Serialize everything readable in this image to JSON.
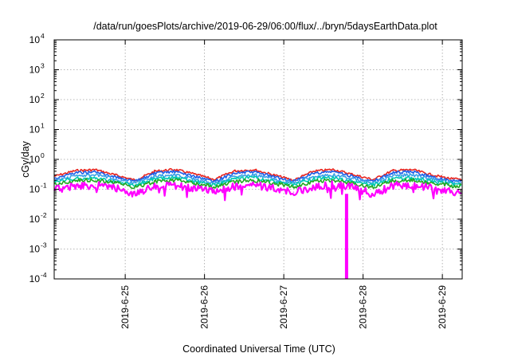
{
  "chart_data": {
    "type": "line",
    "title": "/data/run/goesPlots/archive/2019-06-29/06:00/flux/../bryn/5daysEarthData.plot",
    "xlabel": "Coordinated Universal Time (UTC)",
    "ylabel": "cGy/day",
    "yscale": "log",
    "ylim": [
      0.0001,
      10000
    ],
    "xlim": [
      "2019-06-24T02:30",
      "2019-06-29T06:00"
    ],
    "grid": true,
    "y_ticks": [
      {
        "base": "10",
        "exp": "-4",
        "value": 0.0001
      },
      {
        "base": "10",
        "exp": "-3",
        "value": 0.001
      },
      {
        "base": "10",
        "exp": "-2",
        "value": 0.01
      },
      {
        "base": "10",
        "exp": "-1",
        "value": 0.1
      },
      {
        "base": "10",
        "exp": "0",
        "value": 1
      },
      {
        "base": "10",
        "exp": "1",
        "value": 10
      },
      {
        "base": "10",
        "exp": "2",
        "value": 100
      },
      {
        "base": "10",
        "exp": "3",
        "value": 1000
      },
      {
        "base": "10",
        "exp": "4",
        "value": 10000
      }
    ],
    "x_ticks": [
      {
        "label": "2019-6-25",
        "value": "2019-06-25T00:00"
      },
      {
        "label": "2019-6-26",
        "value": "2019-06-26T00:00"
      },
      {
        "label": "2019-6-27",
        "value": "2019-06-27T00:00"
      },
      {
        "label": "2019-6-28",
        "value": "2019-06-28T00:00"
      },
      {
        "label": "2019-6-29",
        "value": "2019-06-29T00:00"
      }
    ],
    "x": [
      "2019-06-24T03:00",
      "2019-06-24T09:00",
      "2019-06-24T15:00",
      "2019-06-24T21:00",
      "2019-06-25T03:00",
      "2019-06-25T09:00",
      "2019-06-25T15:00",
      "2019-06-25T21:00",
      "2019-06-26T03:00",
      "2019-06-26T09:00",
      "2019-06-26T15:00",
      "2019-06-26T21:00",
      "2019-06-27T03:00",
      "2019-06-27T09:00",
      "2019-06-27T15:00",
      "2019-06-27T21:00",
      "2019-06-28T03:00",
      "2019-06-28T09:00",
      "2019-06-28T15:00",
      "2019-06-28T21:00",
      "2019-06-29T03:00"
    ],
    "series": [
      {
        "color": "#e8251f",
        "values": [
          0.28,
          0.42,
          0.45,
          0.3,
          0.2,
          0.4,
          0.46,
          0.32,
          0.21,
          0.41,
          0.45,
          0.3,
          0.2,
          0.4,
          0.46,
          0.31,
          0.21,
          0.42,
          0.45,
          0.3,
          0.22
        ]
      },
      {
        "color": "#1f5fe8",
        "values": [
          0.24,
          0.36,
          0.38,
          0.26,
          0.18,
          0.34,
          0.39,
          0.27,
          0.18,
          0.35,
          0.38,
          0.26,
          0.18,
          0.34,
          0.39,
          0.27,
          0.18,
          0.36,
          0.38,
          0.26,
          0.19
        ]
      },
      {
        "color": "#3aa0e8",
        "values": [
          0.2,
          0.28,
          0.3,
          0.22,
          0.16,
          0.27,
          0.3,
          0.22,
          0.16,
          0.27,
          0.3,
          0.22,
          0.16,
          0.27,
          0.3,
          0.22,
          0.16,
          0.28,
          0.3,
          0.22,
          0.17
        ]
      },
      {
        "color": "#00c8b4",
        "values": [
          0.17,
          0.23,
          0.24,
          0.18,
          0.14,
          0.22,
          0.24,
          0.18,
          0.14,
          0.22,
          0.24,
          0.18,
          0.14,
          0.22,
          0.24,
          0.18,
          0.14,
          0.23,
          0.24,
          0.18,
          0.15
        ]
      },
      {
        "color": "#22a822",
        "values": [
          0.15,
          0.19,
          0.2,
          0.16,
          0.12,
          0.18,
          0.2,
          0.16,
          0.12,
          0.18,
          0.2,
          0.16,
          0.12,
          0.18,
          0.2,
          0.16,
          0.12,
          0.19,
          0.2,
          0.16,
          0.13
        ]
      },
      {
        "color": "#ff00ff",
        "values": [
          0.1,
          0.13,
          0.14,
          0.11,
          0.07,
          0.12,
          0.14,
          0.11,
          0.08,
          0.12,
          0.14,
          0.11,
          0.08,
          0.12,
          0.14,
          0.11,
          0.07,
          0.13,
          0.14,
          0.11,
          0.08
        ]
      }
    ],
    "annotations": [
      {
        "series": "#ff00ff",
        "x": "2019-06-27T19:00",
        "y": 0.0001,
        "note_type": "dropout"
      }
    ]
  }
}
